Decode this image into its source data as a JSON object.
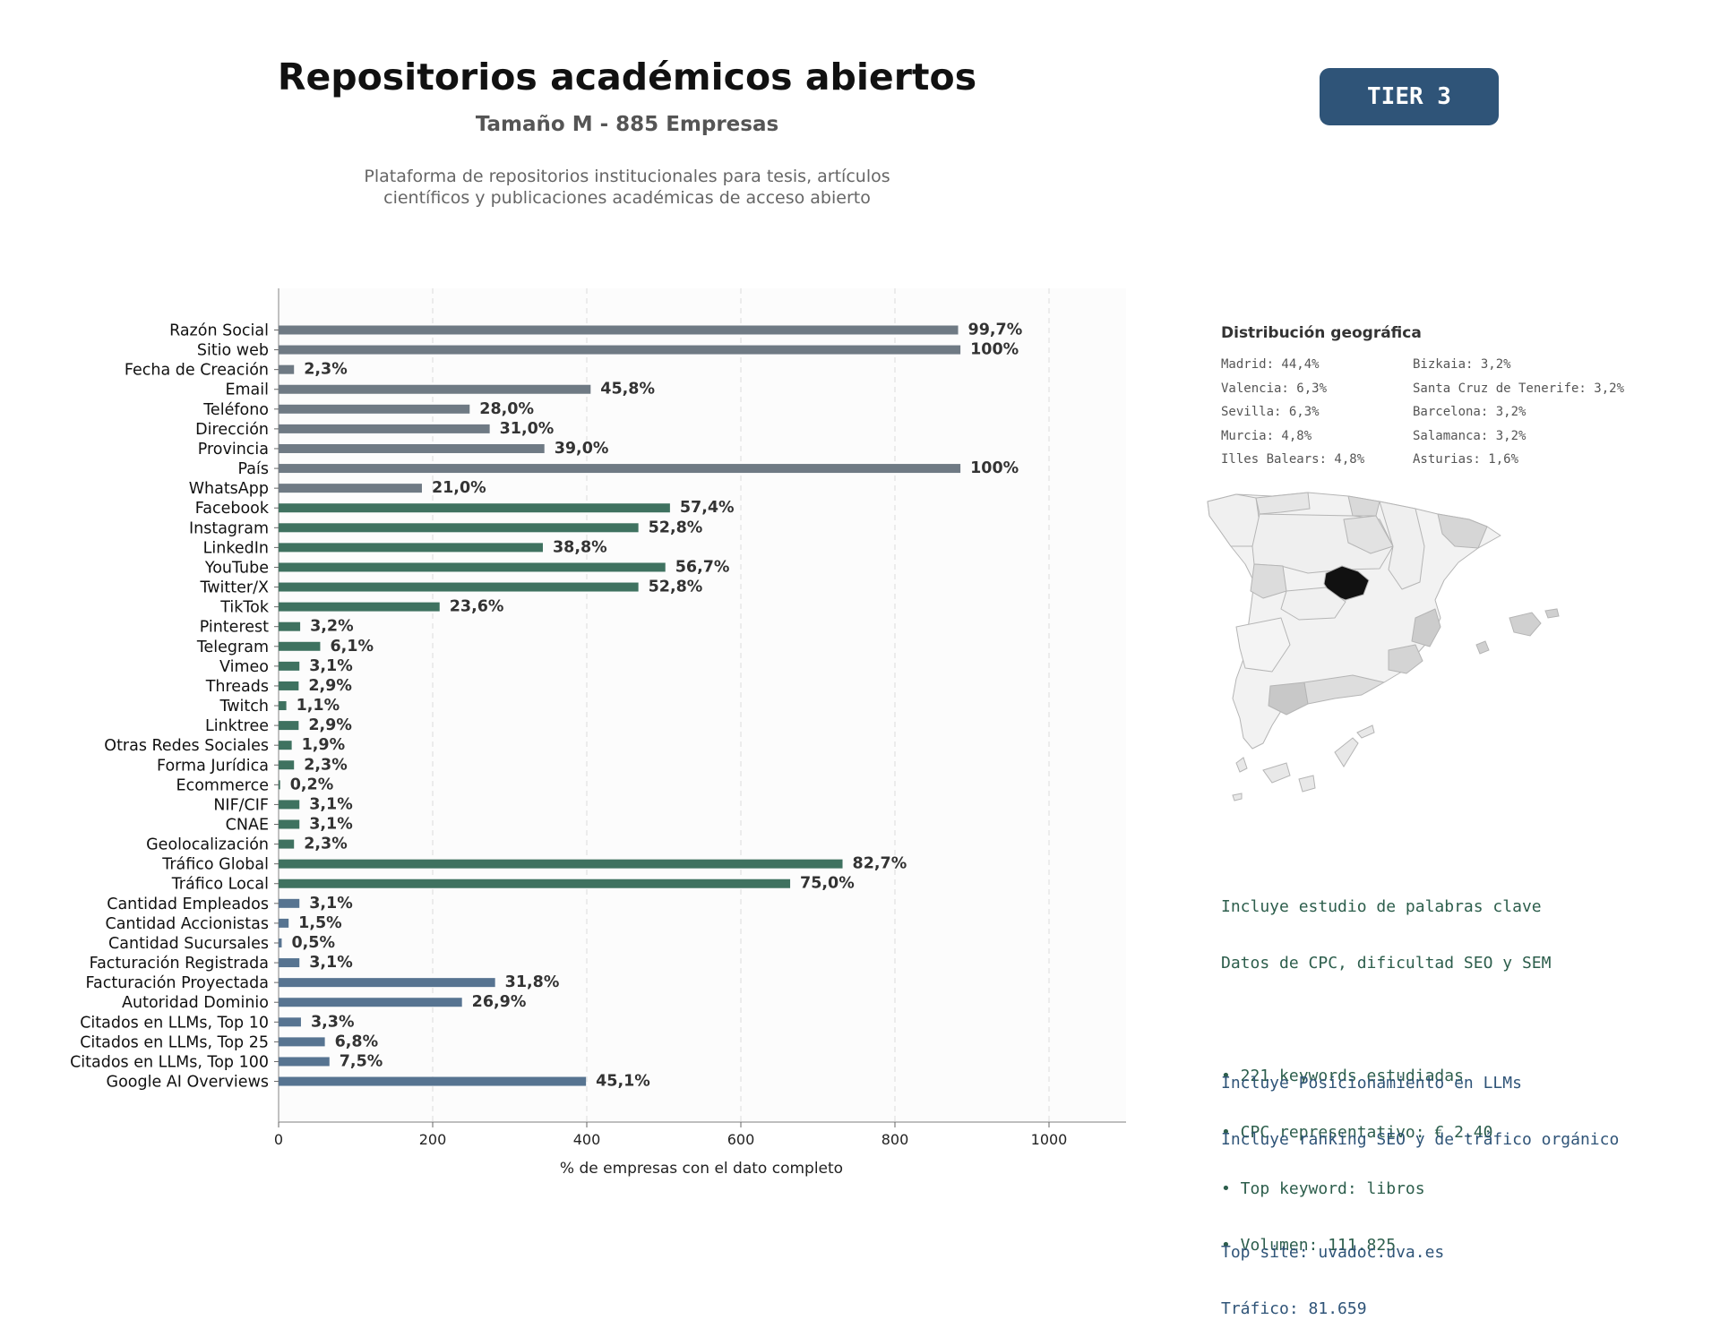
{
  "header": {
    "title": "Repositorios académicos abiertos",
    "subtitle": "Tamaño M - 885 Empresas",
    "description_line1": "Plataforma de repositorios institucionales para tesis, artículos",
    "description_line2": "científicos y publicaciones académicas de acceso abierto",
    "tier_badge": "TIER 3"
  },
  "colors": {
    "gray": "#6f7a84",
    "green": "#3f7260",
    "blue": "#577491",
    "badge": "#2f5478"
  },
  "chart_data": {
    "type": "bar",
    "orientation": "horizontal",
    "title": "",
    "xlabel": "% de empresas con el dato completo",
    "ylabel": "",
    "xlim": [
      0,
      1100
    ],
    "xticks": [
      0,
      200,
      400,
      600,
      800,
      1000
    ],
    "grid": "vertical dashed",
    "legend": "none",
    "categories": [
      "Razón Social",
      "Sitio web",
      "Fecha de Creación",
      "Email",
      "Teléfono",
      "Dirección",
      "Provincia",
      "País",
      "WhatsApp",
      "Facebook",
      "Instagram",
      "LinkedIn",
      "YouTube",
      "Twitter/X",
      "TikTok",
      "Pinterest",
      "Telegram",
      "Vimeo",
      "Threads",
      "Twitch",
      "Linktree",
      "Otras Redes Sociales",
      "Forma Jurídica",
      "Ecommerce",
      "NIF/CIF",
      "CNAE",
      "Geolocalización",
      "Tráfico Global",
      "Tráfico Local",
      "Cantidad Empleados",
      "Cantidad Accionistas",
      "Cantidad Sucursales",
      "Facturación Registrada",
      "Facturación Proyectada",
      "Autoridad Dominio",
      "Citados en LLMs, Top 10",
      "Citados en LLMs, Top 25",
      "Citados en LLMs, Top 100",
      "Google AI Overviews"
    ],
    "values": [
      882,
      885,
      20,
      405,
      248,
      274,
      345,
      885,
      186,
      508,
      467,
      343,
      502,
      467,
      209,
      28,
      54,
      27,
      26,
      10,
      26,
      17,
      20,
      2,
      27,
      27,
      20,
      732,
      664,
      27,
      13,
      4,
      27,
      281,
      238,
      29,
      60,
      66,
      399
    ],
    "labels": [
      "99,7%",
      "100%",
      "2,3%",
      "45,8%",
      "28,0%",
      "31,0%",
      "39,0%",
      "100%",
      "21,0%",
      "57,4%",
      "52,8%",
      "38,8%",
      "56,7%",
      "52,8%",
      "23,6%",
      "3,2%",
      "6,1%",
      "3,1%",
      "2,9%",
      "1,1%",
      "2,9%",
      "1,9%",
      "2,3%",
      "0,2%",
      "3,1%",
      "3,1%",
      "2,3%",
      "82,7%",
      "75,0%",
      "3,1%",
      "1,5%",
      "0,5%",
      "3,1%",
      "31,8%",
      "26,9%",
      "3,3%",
      "6,8%",
      "7,5%",
      "45,1%"
    ],
    "groups": [
      "gray",
      "gray",
      "gray",
      "gray",
      "gray",
      "gray",
      "gray",
      "gray",
      "gray",
      "green",
      "green",
      "green",
      "green",
      "green",
      "green",
      "green",
      "green",
      "green",
      "green",
      "green",
      "green",
      "green",
      "green",
      "green",
      "green",
      "green",
      "green",
      "green",
      "green",
      "blue",
      "blue",
      "blue",
      "blue",
      "blue",
      "blue",
      "blue",
      "blue",
      "blue",
      "blue"
    ]
  },
  "geo": {
    "title": "Distribución geográfica",
    "items": [
      "Madrid: 44,4%",
      "Valencia: 6,3%",
      "Sevilla: 6,3%",
      "Murcia: 4,8%",
      "Illes Balears: 4,8%",
      "Bizkaia: 3,2%",
      "Santa Cruz de Tenerife: 3,2%",
      "Barcelona: 3,2%",
      "Salamanca: 3,2%",
      "Asturias: 1,6%"
    ]
  },
  "keywords": {
    "line1": "Incluye estudio de palabras clave",
    "line2": "Datos de CPC, dificultad SEO y SEM",
    "bullet1": "• 221 keywords estudiadas",
    "bullet2": "• CPC representativo: € 2.40",
    "bullet3": "• Top keyword: libros",
    "bullet4": "• Volumen: 111.825"
  },
  "llm": {
    "line1": "Incluye Posicionamiento en LLMs",
    "line2": "Incluye ranking SEO y de tráfico orgánico",
    "top_site": "Top site: uvadoc.uva.es",
    "traffic": "Tráfico: 81.659"
  }
}
